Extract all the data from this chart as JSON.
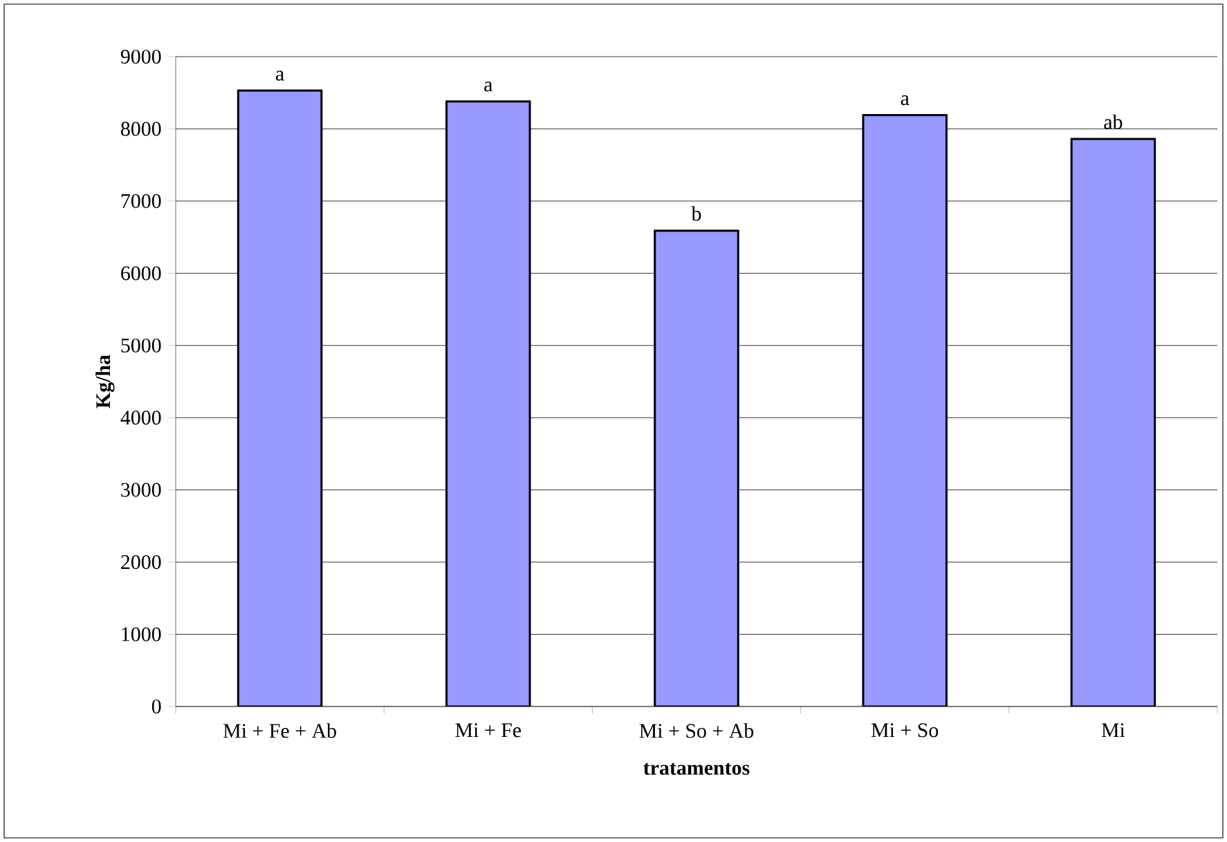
{
  "chart_data": {
    "type": "bar",
    "xlabel": "tratamentos",
    "ylabel": "Kg/ha",
    "categories": [
      "Mi + Fe + Ab",
      "Mi + Fe",
      "Mi + So + Ab",
      "Mi + So",
      "Mi"
    ],
    "values": [
      8530,
      8380,
      6590,
      8190,
      7860
    ],
    "color": "#9999ff",
    "ylim": [
      0,
      9000
    ],
    "yticks": [
      0,
      1000,
      2000,
      3000,
      4000,
      5000,
      6000,
      7000,
      8000,
      9000
    ],
    "grid": "y",
    "annotations": [
      {
        "text": "a",
        "x": "Mi + Fe + Ab",
        "y": 8530
      },
      {
        "text": "a",
        "x": "Mi + Fe",
        "y": 8380
      },
      {
        "text": "b",
        "x": "Mi + So + Ab",
        "y": 6590
      },
      {
        "text": "a",
        "x": "Mi + So",
        "y": 8190
      },
      {
        "text": "ab",
        "x": "Mi",
        "y": 7860
      }
    ]
  }
}
